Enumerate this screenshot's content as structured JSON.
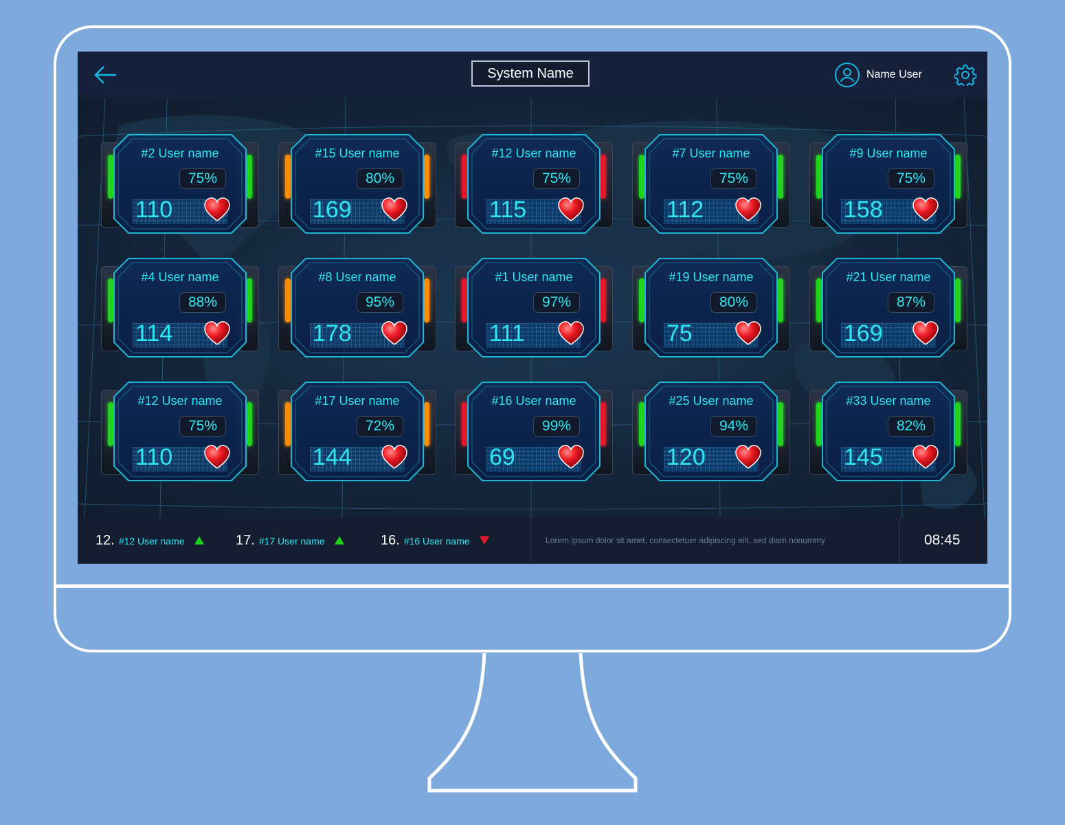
{
  "colors": {
    "page_background": "#7ea9dc",
    "screen_background": "#131c2d",
    "accent_cyan": "#2ee7f3",
    "status_green": "#22d31e",
    "status_orange": "#ff8c00",
    "status_red": "#e3192a"
  },
  "header": {
    "back_icon": "arrow-left-icon",
    "system_name": "System Name",
    "user_icon": "user-circle-icon",
    "user_name": "Name User",
    "settings_icon": "gear-icon"
  },
  "cards": [
    {
      "user": "#2 User name",
      "percent": "75%",
      "heart_rate": "110",
      "status": "green"
    },
    {
      "user": "#15 User name",
      "percent": "80%",
      "heart_rate": "169",
      "status": "orange"
    },
    {
      "user": "#12 User name",
      "percent": "75%",
      "heart_rate": "115",
      "status": "red"
    },
    {
      "user": "#7 User name",
      "percent": "75%",
      "heart_rate": "112",
      "status": "green"
    },
    {
      "user": "#9 User name",
      "percent": "75%",
      "heart_rate": "158",
      "status": "green"
    },
    {
      "user": "#4 User name",
      "percent": "88%",
      "heart_rate": "114",
      "status": "green"
    },
    {
      "user": "#8 User name",
      "percent": "95%",
      "heart_rate": "178",
      "status": "orange"
    },
    {
      "user": "#1 User name",
      "percent": "97%",
      "heart_rate": "111",
      "status": "red"
    },
    {
      "user": "#19 User name",
      "percent": "80%",
      "heart_rate": "75",
      "status": "green"
    },
    {
      "user": "#21 User name",
      "percent": "87%",
      "heart_rate": "169",
      "status": "green"
    },
    {
      "user": "#12 User name",
      "percent": "75%",
      "heart_rate": "110",
      "status": "green"
    },
    {
      "user": "#17 User name",
      "percent": "72%",
      "heart_rate": "144",
      "status": "orange"
    },
    {
      "user": "#16 User name",
      "percent": "99%",
      "heart_rate": "69",
      "status": "red"
    },
    {
      "user": "#25 User name",
      "percent": "94%",
      "heart_rate": "120",
      "status": "green"
    },
    {
      "user": "#33 User name",
      "percent": "82%",
      "heart_rate": "145",
      "status": "green"
    }
  ],
  "footer": {
    "rankings": [
      {
        "rank": "12.",
        "user": "#12 User name",
        "trend": "up"
      },
      {
        "rank": "17.",
        "user": "#17 User name",
        "trend": "up"
      },
      {
        "rank": "16.",
        "user": "#16 User name",
        "trend": "down"
      }
    ],
    "ticker": "Lorem ipsum dolor sit amet, consectetuer adipiscing elit, sed diam nonummy",
    "clock": "08:45"
  }
}
